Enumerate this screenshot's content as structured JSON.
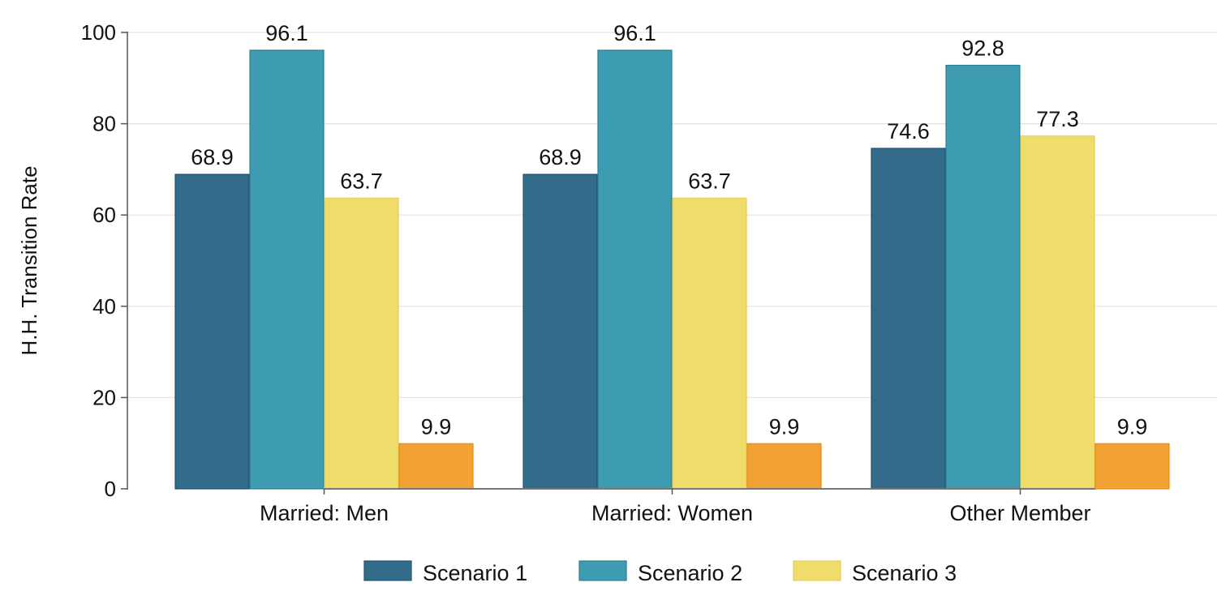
{
  "chart_data": {
    "type": "bar",
    "title": "",
    "xlabel": "",
    "ylabel": "H.H. Transition Rate",
    "ylim": [
      0,
      100
    ],
    "yticks": [
      0,
      20,
      40,
      60,
      80,
      100
    ],
    "grid": true,
    "legend_position": "bottom",
    "categories": [
      "Married: Men",
      "Married: Women",
      "Other Member"
    ],
    "series": [
      {
        "name": "Scenario 1",
        "color": "#336C8A",
        "values": [
          68.9,
          68.9,
          74.6
        ],
        "in_legend": true
      },
      {
        "name": "Scenario 2",
        "color": "#3E9CB2",
        "values": [
          96.1,
          96.1,
          92.8
        ],
        "in_legend": true
      },
      {
        "name": "Scenario 3",
        "color": "#EFDC6A",
        "values": [
          63.7,
          63.7,
          77.3
        ],
        "in_legend": true
      },
      {
        "name": "",
        "color": "#F2A134",
        "values": [
          9.9,
          9.9,
          9.9
        ],
        "in_legend": false
      }
    ],
    "value_labels": [
      [
        "68.9",
        "96.1",
        "63.7",
        "9.9"
      ],
      [
        "68.9",
        "96.1",
        "63.7",
        "9.9"
      ],
      [
        "74.6",
        "92.8",
        "77.3",
        "9.9"
      ]
    ],
    "tick_labels": [
      "0",
      "20",
      "40",
      "60",
      "80",
      "100"
    ]
  }
}
